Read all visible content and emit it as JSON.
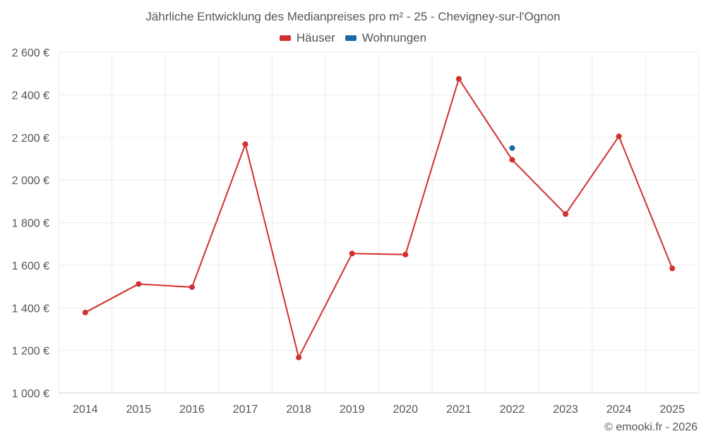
{
  "chart_data": {
    "type": "line",
    "title": "Jährliche Entwicklung des Medianpreises pro m² - 25 - Chevigney-sur-l'Ognon",
    "xlabel": "",
    "ylabel": "",
    "categories": [
      "2014",
      "2015",
      "2016",
      "2017",
      "2018",
      "2019",
      "2020",
      "2021",
      "2022",
      "2023",
      "2024",
      "2025"
    ],
    "ylim": [
      1000,
      2600
    ],
    "yticks": [
      1000,
      1200,
      1400,
      1600,
      1800,
      2000,
      2200,
      2400,
      2600
    ],
    "ytick_labels": [
      "1 000 €",
      "1 200 €",
      "1 400 €",
      "1 600 €",
      "1 800 €",
      "2 000 €",
      "2 200 €",
      "2 400 €",
      "2 600 €"
    ],
    "grid": true,
    "legend_position": "top-center",
    "series": [
      {
        "name": "Häuser",
        "color": "#d32f2f",
        "values": [
          1378,
          1512,
          1497,
          2168,
          1167,
          1655,
          1650,
          2475,
          2095,
          1840,
          2205,
          1585
        ]
      },
      {
        "name": "Wohnungen",
        "color": "#1a6aa8",
        "values": [
          null,
          null,
          null,
          null,
          null,
          null,
          null,
          null,
          2150,
          null,
          null,
          null
        ]
      }
    ]
  },
  "credit": "© emooki.fr - 2026"
}
